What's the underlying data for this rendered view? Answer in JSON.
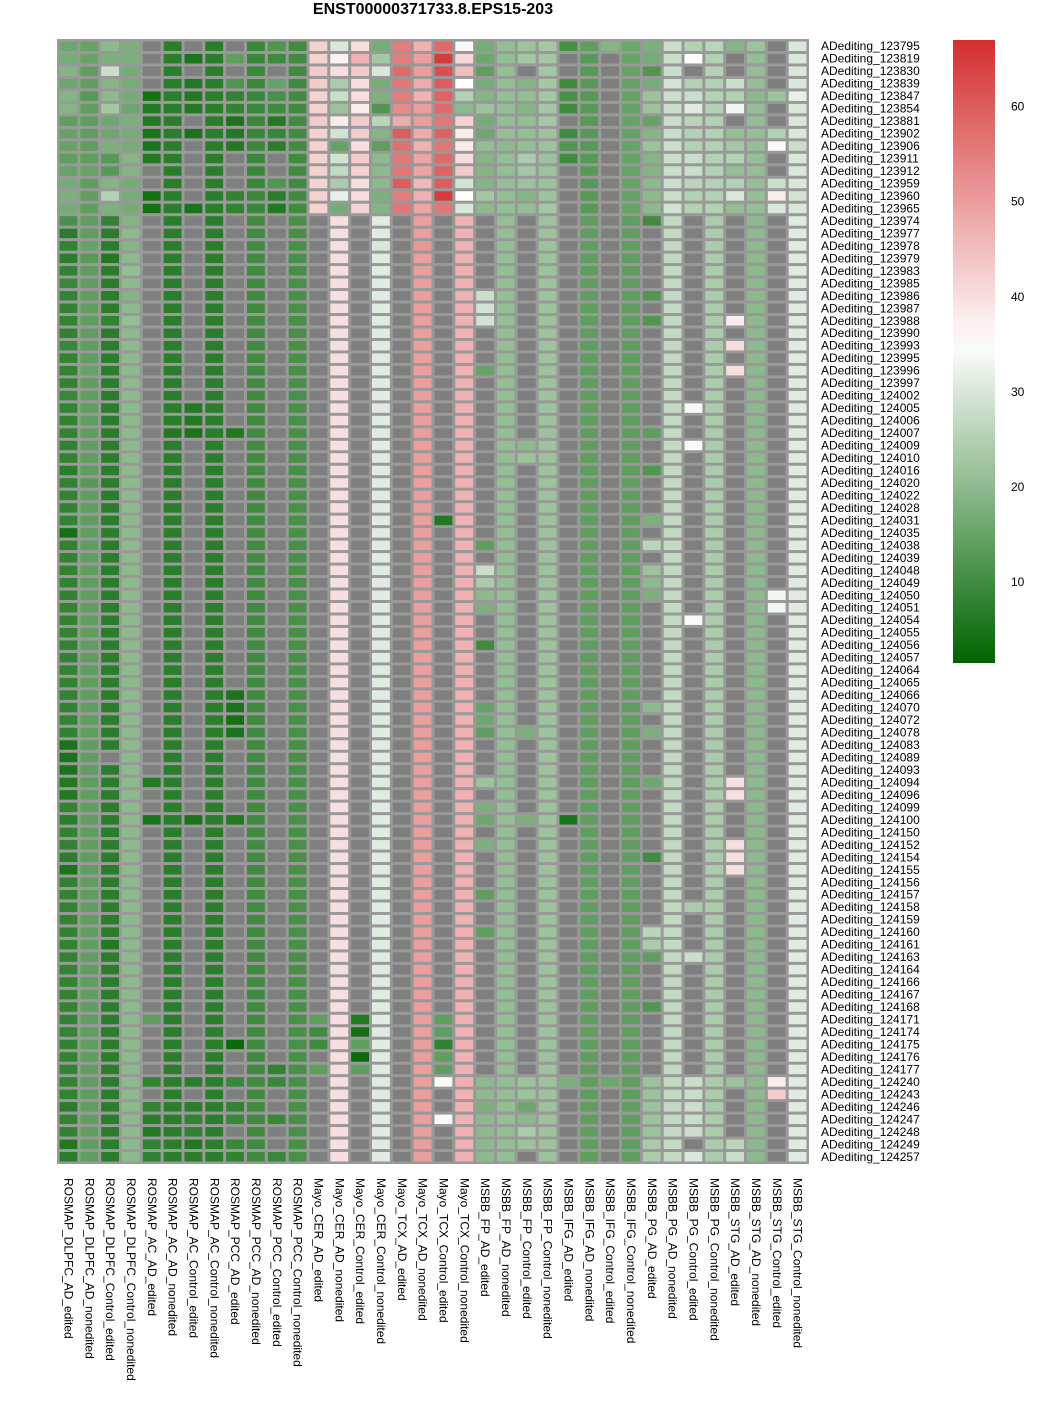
{
  "chart_data": {
    "type": "heatmap",
    "title": "ENST00000371733.8.EPS15-203",
    "na_color": "#7f7f7f",
    "color_scale": {
      "low": "#006400",
      "mid": "#ffffff",
      "high": "#d32f2f",
      "min": 1.5,
      "mid_value": 35,
      "max": 67
    },
    "colorbar_ticks": [
      60,
      50,
      40,
      30,
      20,
      10
    ],
    "columns": [
      "ROSMAP_DLPFC_AD_edited",
      "ROSMAP_DLPFC_AD_nonedited",
      "ROSMAP_DLPFC_Control_edited",
      "ROSMAP_DLPFC_Control_nonedited",
      "ROSMAP_AC_AD_edited",
      "ROSMAP_AC_AD_nonedited",
      "ROSMAP_AC_Control_edited",
      "ROSMAP_AC_Control_nonedited",
      "ROSMAP_PCC_AD_edited",
      "ROSMAP_PCC_AD_nonedited",
      "ROSMAP_PCC_Control_edited",
      "ROSMAP_PCC_Control_nonedited",
      "Mayo_CER_AD_edited",
      "Mayo_CER_AD_nonedited",
      "Mayo_CER_Control_edited",
      "Mayo_CER_Control_nonedited",
      "Mayo_TCX_AD_edited",
      "Mayo_TCX_AD_nonedited",
      "Mayo_TCX_Control_edited",
      "Mayo_TCX_Control_nonedited",
      "MSBB_FP_AD_edited",
      "MSBB_FP_AD_nonedited",
      "MSBB_FP_Control_edited",
      "MSBB_FP_Control_nonedited",
      "MSBB_IFG_AD_edited",
      "MSBB_IFG_AD_nonedited",
      "MSBB_IFG_Control_edited",
      "MSBB_IFG_Control_nonedited",
      "MSBB_PG_AD_edited",
      "MSBB_PG_AD_nonedited",
      "MSBB_PG_Control_edited",
      "MSBB_PG_Control_nonedited",
      "MSBB_STG_AD_edited",
      "MSBB_STG_AD_nonedited",
      "MSBB_STG_Control_edited",
      "MSBB_STG_Control_nonedited"
    ],
    "rows": [
      "ADediting_123795",
      "ADediting_123819",
      "ADediting_123830",
      "ADediting_123839",
      "ADediting_123847",
      "ADediting_123854",
      "ADediting_123881",
      "ADediting_123902",
      "ADediting_123906",
      "ADediting_123911",
      "ADediting_123912",
      "ADediting_123959",
      "ADediting_123960",
      "ADediting_123965",
      "ADediting_123974",
      "ADediting_123977",
      "ADediting_123978",
      "ADediting_123979",
      "ADediting_123983",
      "ADediting_123985",
      "ADediting_123986",
      "ADediting_123987",
      "ADediting_123988",
      "ADediting_123990",
      "ADediting_123993",
      "ADediting_123995",
      "ADediting_123996",
      "ADediting_123997",
      "ADediting_124002",
      "ADediting_124005",
      "ADediting_124006",
      "ADediting_124007",
      "ADediting_124009",
      "ADediting_124010",
      "ADediting_124016",
      "ADediting_124020",
      "ADediting_124022",
      "ADediting_124028",
      "ADediting_124031",
      "ADediting_124035",
      "ADediting_124038",
      "ADediting_124039",
      "ADediting_124048",
      "ADediting_124049",
      "ADediting_124050",
      "ADediting_124051",
      "ADediting_124054",
      "ADediting_124055",
      "ADediting_124056",
      "ADediting_124057",
      "ADediting_124064",
      "ADediting_124065",
      "ADediting_124066",
      "ADediting_124070",
      "ADediting_124072",
      "ADediting_124078",
      "ADediting_124083",
      "ADediting_124089",
      "ADediting_124093",
      "ADediting_124094",
      "ADediting_124096",
      "ADediting_124099",
      "ADediting_124100",
      "ADediting_124150",
      "ADediting_124152",
      "ADediting_124154",
      "ADediting_124155",
      "ADediting_124156",
      "ADediting_124157",
      "ADediting_124158",
      "ADediting_124159",
      "ADediting_124160",
      "ADediting_124161",
      "ADediting_124163",
      "ADediting_124164",
      "ADediting_124166",
      "ADediting_124167",
      "ADediting_124168",
      "ADediting_124171",
      "ADediting_124174",
      "ADediting_124175",
      "ADediting_124176",
      "ADediting_124177",
      "ADediting_124240",
      "ADediting_124243",
      "ADediting_124246",
      "ADediting_124247",
      "ADediting_124248",
      "ADediting_124249",
      "ADediting_124257"
    ],
    "values": [
      "16 15 20 18 - 7 - 7 - 9 12 10 42 30 40 17 55 47 58 34 17 21 22 23 11 14 19 16 18 28 25 26 19 22 - 30",
      "17 15 18 18 - 7 5 7 14 9 10 10 42 37 47 23 55 50 65 41 16 21 23 23 - 13 - 15 17 28 35 25 - 21 - 30",
      "19 14 28 17 - 7 - 7 - 9 - 10 43 40 43 30 58 50 62 45 14 21 - 23 - 13 - 15 12 28 - 25 - 21 - 30",
      "16 14 19 17 - 7 6 7 12 9 15 10 43 24 40 17 56 48 60 35 17 21 19 23 10 13 - 15 17 29 25 25 28 21 - 30",
      "19 13 20 17 4 7 6 7 8 9 11 10 42 28 40 18 55 47 59 25 19 21 21 23 11 13 - 15 22 28 28 25 25 20 22 32",
      "19 14 23 16 6 7 6 7 8 9 10 10 42 22 38 12 53 50 58 20 22 21 19 23 10 13 - 15 22 28 31 25 33 21 - 30",
      "14 14 16 18 6 7 - 7 5 9 6 10 43 38 43 26 48 50 56 42 17 21 21 23 - 13 - 15 15 28 26 25 - 21 - 30",
      "15 14 16 17 5 7 5 7 6 9 9 10 42 29 43 19 60 48 59 38 16 21 21 22 10 13 - 15 19 28 25 25 21 21 25 30",
      "15 14 18 17 5 7 - 7 6 9 7 10 42 15 40 14 57 47 56 38 21 20 21 22 12 13 - 15 22 28 25 25 23 21 36 28",
      "14 14 13 19 6 7 - 7 - 9 - 10 42 29 43 20 56 49 58 40 19 21 24 22 10 13 - 15 19 28 28 25 25 21 - 30",
      "15 15 13 19 - 7 - 7 - 9 - 10 42 27 42 20 56 49 59 43 19 21 23 22 - 13 - 15 19 28 28 25 21 21 - 30",
      "17 14 19 17 - 7 - 7 - 9 12 10 42 24 40 20 60 46 60 29 19 21 22 22 - 13 - 15 20 28 26 25 25 21 28 30",
      "18 14 25 17 4 7 - 7 8 9 7 10 42 32 40 18 55 47 65 35 23 21 19 22 - 13 - 15 20 28 25 25 30 21 38 29",
      "17 14 18 17 4 7 5 7 8 9 6 10 42 17 42 19 56 49 56 30 20 21 21 23 - 13 - 15 20 29 25 25 21 21 30 30",
      "11 14 8 19 - 7 - 7 - 10 - 11 - 40 - 31 - 50 - 47 - 21 - 22 - 14 - 14 10 27 - 24 - 20 - 31",
      "7 14 7 20 - 7 - 7 - 10 - 11 - 40 - 31 - 50 - 47 - 21 - 22 - 14 - 14 - 27 - 24 - 20 - 31",
      "8 15 7 19 - 7 - 7 - 10 - 11 - 40 - 30 - 51 - 47 - 21 - 22 - 14 - 14 - 27 - 24 - 20 - 31",
      "7 13 6 20 - 7 - 7 - 10 - 11 - 40 - 31 - 50 - 47 - 21 - 22 - 14 - 14 - 27 - 24 - 20 - 31",
      "8 14 7 21 - 7 - 7 - 10 - 11 - 40 - 31 - 50 - 47 - 21 - 22 - 14 - 14 - 27 - 24 - 20 - 31",
      "9 14 7 20 - 7 - 7 - 10 - 11 - 40 - 31 - 50 - 47 - 21 - 22 - 14 - 14 - 27 - 24 - 20 - 31",
      "8 14 7 19 - 7 - 7 - 10 - 11 - 40 - 31 - 50 - 47 28 21 - 22 - 14 - 14 12 27 - 24 - 20 - 31",
      "8 14 7 20 - 7 - 7 - 10 - 11 - 40 - 31 - 50 - 47 29 21 - 22 - 14 - 14 - 27 - 24 - 20 - 31",
      "8 14 8 21 - 7 - 7 - 10 - 11 - 40 - 31 - 50 - 47 29 21 - 22 - 14 - 14 12 27 - 24 38 20 - 31",
      "8 14 7 20 - 7 - 7 - 10 - 11 - 40 - 31 - 50 - 47 - 21 - 22 - 14 - 14 - 27 - 24 - 20 - 31",
      "9 14 7 20 - 7 - 7 - 10 - 11 - 40 - 31 - 50 - 47 - 21 - 22 - 14 - 14 - 27 - 24 40 20 - 31",
      "8 14 7 20 - 7 - 7 - 10 - 11 - 40 - 31 - 50 - 47 - 21 - 22 - 14 - 14 - 27 - 24 - 20 - 31",
      "8 15 7 20 - 7 - 7 - 10 - 11 - 40 - 31 - 50 - 47 15 21 - 22 - 14 - 14 - 27 - 24 40 20 - 31",
      "8 14 7 20 - 7 - 7 - 10 - 11 - 40 - 31 - 50 - 47 - 21 - 22 - 14 - 14 - 27 - 24 - 20 - 31",
      "9 14 7 20 - 7 - 7 - 10 - 11 - 40 - 31 - 50 - 47 - 21 - 22 - 14 - 14 - 27 - 24 - 20 - 31",
      "8 14 7 20 - 7 6 7 - 10 - 11 - 40 - 31 - 50 - 47 - 21 - 22 - 14 - 14 - 27 34 24 - 20 - 31",
      "8 14 7 20 - 7 6 7 - 10 - 11 - 40 - 31 - 50 - 47 - 21 - 22 - 14 - 14 - 27 - 24 - 20 - 31",
      "8 14 7 20 - 6 5 7 6 10 - 11 - 40 - 31 - 50 - 47 - 21 - 22 - 14 - 14 14 27 - 24 - 20 - 31",
      "8 14 7 20 - 7 - 7 - 10 - 11 - 40 - 31 - 50 - 47 - 21 20 22 - 14 - 14 - 27 34 24 - 20 - 31",
      "8 14 7 20 - 7 - 7 - 10 - 11 - 40 - 31 - 50 - 47 - 21 22 22 - 14 - 14 - 27 - 24 - 20 - 31",
      "7 14 7 20 - 7 - 7 - 10 - 11 - 40 - 31 - 50 - 47 - 21 - 22 - 14 - 14 12 27 - 24 - 20 - 31",
      "8 13 7 20 - 7 - 7 - 10 - 11 - 40 - 31 - 50 - 47 - 21 - 22 - 14 - 14 - 27 - 24 - 20 - 31",
      "8 14 7 20 - 7 - 7 - 10 - 11 - 40 - 31 - 50 - 47 - 21 - 22 - 14 - 14 - 27 - 24 - 20 - 31",
      "8 14 7 20 - 7 - 7 - 10 - 11 - 40 - 31 - 50 - 47 - 21 - 22 - 14 - 14 - 27 - 24 - 20 - 31",
      "8 14 7 20 - 7 - 7 - 10 - 11 - 40 - 31 - 50 6 47 - 21 - 22 - 14 - 14 18 27 - 24 - 20 - 31",
      "4 14 7 20 - 7 - 7 - 10 - 11 - 40 - 31 - 50 - 47 - 21 - 22 - 14 - 14 - 27 - 24 - 20 - 31",
      "8 14 7 20 - 7 - 7 - 10 - 11 - 40 - 31 - 50 - 47 14 21 - 22 - 14 - 14 26 27 - 24 - 20 - 31",
      "8 14 7 20 - 7 - 7 - 10 - 11 - 40 - 31 - 50 - 47 - 21 - 22 - 14 - 14 - 27 - 24 - 20 - 31",
      "8 14 7 20 - 7 - 7 - 10 - 11 - 40 - 31 - 50 - 47 28 21 - 22 - 14 - 14 22 27 - 24 - 20 - 31",
      "8 14 7 20 - 7 - 7 - 10 - 11 - 40 - 31 - 50 - 47 24 21 - 22 - 14 - 14 20 27 - 24 - 20 - 31",
      "8 14 7 20 - 7 - 7 - 10 - 11 - 40 - 31 - 50 - 47 20 21 - 22 - 14 - 14 18 27 - 24 - 20 33 31",
      "8 14 7 20 - 7 - 7 - 10 - 11 - 40 - 31 - 50 - 47 18 21 - 22 - 14 - 14 - 27 - 24 - 20 33 31",
      "8 14 7 20 - 7 - 7 - 10 - 11 - 40 - 31 - 50 - 47 - 21 - 22 - 14 - 14 - 27 34 24 - 20 - 31",
      "8 14 7 20 - 7 - 7 - 10 - 11 - 40 - 31 - 50 - 47 - 21 - 22 - 14 - 14 - 27 - 24 - 20 - 31",
      "8 14 7 20 - 7 - 7 - 10 - 11 - 40 - 31 - 50 - 47 10 21 - 22 - 14 - 14 - 27 - 24 - 20 - 31",
      "8 14 7 20 - 7 - 7 - 10 - 11 - 40 - 31 - 50 - 47 - 21 - 22 - 14 - 14 - 27 - 24 - 20 - 31",
      "8 14 7 20 - 7 - 7 - 10 - 11 - 40 - 31 - 50 - 47 - 21 - 22 - 14 - 14 - 27 - 24 - 20 - 31",
      "8 14 7 20 - 7 - 7 - 10 - 11 - 40 - 31 - 50 - 47 - 21 - 22 - 14 - 14 - 27 - 24 - 20 - 31",
      "8 14 7 20 - 7 - 7 5 10 - 11 - 40 - 31 - 50 - 47 - 21 - 22 - 14 - 14 - 27 - 24 - 20 - 31",
      "8 14 7 20 - 7 - 7 5 10 - 11 - 40 - 31 - 50 - 47 15 21 - 22 - 14 - 14 20 27 - 24 - 20 - 31",
      "8 14 7 20 - 7 - 7 4 10 - 11 - 40 - 31 - 50 - 47 16 21 - 22 - 14 - 14 - 27 - 24 - 20 - 31",
      "8 14 7 20 - 7 - 7 5 10 - 11 - 40 - 31 - 50 - 47 14 21 18 22 - 14 - 14 18 27 - 24 - 20 - 31",
      "5 14 7 20 - 7 - 7 - 10 - 11 - 40 - 31 - 50 - 47 - 21 - 22 - 14 - 14 - 27 - 24 - 20 - 31",
      "5 14 - 20 - 7 - 7 - 10 - 11 - 40 - 31 - 50 - 47 - 21 - 22 - 14 - 14 - 27 - 24 - 20 - 31",
      "5 14 7 20 - 7 - 7 - 10 - 11 - 40 - 31 - 50 - 47 - 21 - 22 - 14 - 14 - 27 - 24 - 20 - 31",
      "6 14 7 20 6 7 - 7 - 10 - 11 - 40 - 31 - 50 - 47 22 21 - 22 - 14 - 14 16 27 - 24 40 20 - 31",
      "6 14 7 20 - 7 - 7 - 10 - 11 - 40 - 31 - 50 - 47 - 21 - 22 - 14 - 14 - 27 - 24 40 20 - 31",
      "8 14 7 20 - 7 - 7 - 10 - 11 - 40 - 31 - 50 - 47 18 21 - 22 - 14 - 14 - 27 - 24 - 20 - 31",
      "7 14 7 20 5 7 5 7 6 10 - 11 - 40 - 31 - 50 - 47 16 21 18 22 5 14 - 14 - 27 - 24 - 20 - 31",
      "8 14 7 20 - 7 - 7 - 10 - 11 - 40 - 31 - 50 - 47 - 21 - 22 - 14 - 14 - 27 - 24 - 20 - 31",
      "8 14 7 20 - 7 - 7 - 10 - 11 - 40 - 31 - 50 - 47 18 21 - 22 - 14 - 14 - 27 - 24 40 20 - 31",
      "7 14 7 20 - 7 - 7 - 10 - 11 - 40 - 31 - 50 - 47 - 21 - 22 - 14 - 14 10 27 - 24 40 20 - 31",
      "5 14 7 20 - 7 - 7 - 10 - 11 - 40 - 31 - 50 - 47 - 21 - 22 - 14 - 14 - 27 - 24 40 20 - 31",
      "8 14 7 20 - 7 - 7 - 10 - 11 - 40 - 31 - 50 - 47 - 21 - 22 - 14 - 14 - 27 - 24 - 20 - 31",
      "8 14 7 20 - 7 - 7 - 10 - 11 - 40 - 31 - 50 - 47 14 21 - 22 - 14 - 14 - 27 - 24 - 20 - 31",
      "8 14 7 20 - 7 - 7 - 10 - 11 - 40 - 31 - 50 - 47 - 21 - 22 - 14 - 14 - 27 24 24 - 20 - 31",
      "8 14 7 20 - 7 - 7 - 10 - 11 - 40 - 31 - 50 - 47 - 21 - 22 - 14 - 14 - 27 - 24 - 20 - 31",
      "8 14 7 20 - 7 - 7 - 10 - 11 - 40 - 31 - 50 - 47 14 21 - 22 - 14 - 14 26 27 - 24 - 20 - 31",
      "8 14 6 20 - 7 - 7 - 10 - 11 - 40 - 31 - 50 - 47 - 21 - 22 - 14 - 14 24 27 - 24 - 20 - 31",
      "8 14 7 20 - 7 - 7 - 10 - 11 - 40 - 31 - 50 - 47 - 21 - 22 - 14 - 14 14 27 28 24 - 20 - 31",
      "8 14 7 20 - 7 - 7 - 10 - 11 - 40 - 31 - 50 - 47 - 21 - 22 - 14 - 14 - 27 - 24 - 20 - 31",
      "8 14 7 20 - 7 - 7 - 10 - 11 - 40 - 31 - 50 - 47 - 21 - 22 - 14 - 14 - 27 - 24 - 20 - 31",
      "8 14 7 20 - 7 - 7 - 10 - 11 - 40 - 31 - 50 - 47 - 21 - 22 - 14 - 14 - 27 - 24 - 20 - 31",
      "8 14 7 20 - 7 - 7 - 10 - 11 - 40 - 31 - 50 - 47 - 21 - 22 - 14 - 14 12 27 - 24 - 20 - 31",
      "8 14 7 20 14 7 - 7 - 10 - 11 14 40 6 31 - 50 14 47 - 21 - 22 - 14 - 14 - 27 - 24 - 20 - 31",
      "8 14 7 20 - 7 - 7 - 10 - 11 10 40 4 31 - 50 14 47 - 21 - 22 - 14 - 14 - 27 - 24 - 20 - 31",
      "8 14 7 20 - 7 - 7 3 10 - 11 10 40 14 31 - 50 8 47 - 21 - 22 - 14 - 14 - 27 - 24 - 20 - 31",
      "8 14 7 20 - 7 - 7 - 10 - 11 - 40 3 31 - 50 14 47 - 21 - 22 - 14 - 14 - 27 - 24 - 20 - 31",
      "8 14 7 20 - 7 - 7 - 10 8 11 14 40 14 31 - 50 14 47 - 21 - 22 - 14 - 14 - 27 - 24 - 20 - 31",
      "8 14 7 20 8 7 7 7 9 10 9 11 - 40 - 31 - 50 36 47 20 21 22 22 18 14 16 14 22 27 28 24 22 20 38 31",
      "8 14 7 20 - 7 - 7 - 10 - 11 - 40 - 31 - 50 - 47 20 21 22 22 - 14 - 14 22 27 28 24 - 20 43 31",
      "7 14 7 20 8 7 7 7 8 10 - 11 - 40 - 31 - 50 - 47 18 21 16 22 - 14 - 14 22 27 28 24 - 20 - 31",
      "8 14 7 20 7 7 8 7 9 10 9 11 - 40 - 31 - 50 36 47 20 21 20 22 - 14 - 14 22 27 28 24 - 20 - 31",
      "8 14 7 20 6 7 8 7 - 10 - 11 - 40 - 31 - 50 - 47 20 21 24 22 - 14 - 14 22 27 28 24 - 20 - 31",
      "6 14 7 20 8 7 6 7 9 10 - 11 - 40 - 31 - 50 - 47 20 21 22 22 - 14 - 14 24 27 - 24 26 20 - 31",
      "7 14 7 20 8 7 7 7 8 10 9 11 - 40 - 31 - 50 - 47 20 21 - 22 - 14 - 14 24 27 30 24 28 20 - 31"
    ]
  }
}
